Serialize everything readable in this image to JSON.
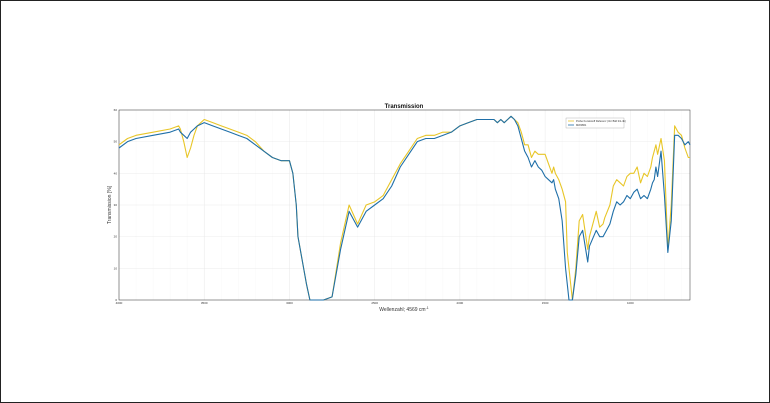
{
  "chart_data": {
    "type": "line",
    "title": "Transmission",
    "xlabel": "Wellenzahl; 4569 cm",
    "xlabel_superscript": "-1",
    "ylabel": "Transmission [%]",
    "xlim": [
      4000,
      650
    ],
    "ylim": [
      0,
      60
    ],
    "x_ticks": [
      4000,
      3500,
      3000,
      2500,
      2000,
      1500,
      1000
    ],
    "y_ticks": [
      0,
      10,
      20,
      30,
      40,
      50,
      60
    ],
    "grid": true,
    "legend_position": "top-right",
    "series": [
      {
        "name": "Probe Kunststoff Referenz (Vor Bild 3/1-4b)",
        "color": "#e8c628",
        "x": [
          4000,
          3950,
          3900,
          3800,
          3700,
          3650,
          3640,
          3620,
          3600,
          3580,
          3560,
          3540,
          3500,
          3450,
          3400,
          3350,
          3300,
          3250,
          3200,
          3150,
          3100,
          3050,
          3000,
          2980,
          2960,
          2950,
          2900,
          2880,
          2860,
          2850,
          2820,
          2800,
          2750,
          2700,
          2650,
          2600,
          2550,
          2500,
          2450,
          2400,
          2350,
          2300,
          2250,
          2200,
          2150,
          2100,
          2050,
          2000,
          1950,
          1900,
          1850,
          1800,
          1780,
          1760,
          1740,
          1720,
          1700,
          1680,
          1660,
          1640,
          1620,
          1600,
          1580,
          1560,
          1540,
          1520,
          1500,
          1480,
          1460,
          1450,
          1440,
          1420,
          1400,
          1380,
          1370,
          1360,
          1340,
          1320,
          1300,
          1280,
          1250,
          1240,
          1200,
          1180,
          1160,
          1150,
          1120,
          1100,
          1080,
          1060,
          1040,
          1020,
          1000,
          980,
          960,
          940,
          920,
          900,
          880,
          870,
          860,
          850,
          840,
          820,
          800,
          780,
          760,
          740,
          720,
          700,
          680,
          660,
          650
        ],
        "y": [
          49,
          51,
          52,
          53,
          54,
          55,
          54,
          50,
          45,
          48,
          52,
          55,
          57,
          56,
          55,
          54,
          53,
          52,
          50,
          47,
          45,
          44,
          44,
          40,
          30,
          20,
          5,
          0,
          0,
          0,
          0,
          0,
          1,
          18,
          30,
          24,
          30,
          31,
          33,
          38,
          43,
          47,
          51,
          52,
          52,
          53,
          53,
          55,
          56,
          57,
          57,
          57,
          56,
          57,
          56,
          57,
          58,
          57,
          56,
          53,
          49,
          49,
          45,
          47,
          46,
          46,
          46,
          43,
          40,
          42,
          40,
          38,
          35,
          31,
          15,
          10,
          0,
          10,
          25,
          27,
          16,
          20,
          28,
          23,
          24,
          26,
          30,
          36,
          38,
          37,
          36,
          39,
          40,
          40,
          42,
          37,
          40,
          39,
          42,
          45,
          47,
          49,
          46,
          51,
          44,
          16,
          30,
          55,
          53,
          52,
          48,
          45,
          45
        ],
        "visible_labels": {
          "title": "Transmission"
        }
      },
      {
        "name": "MW2861",
        "color": "#1f6fa8",
        "x": [
          4000,
          3950,
          3900,
          3800,
          3700,
          3650,
          3640,
          3620,
          3600,
          3580,
          3560,
          3540,
          3500,
          3450,
          3400,
          3350,
          3300,
          3250,
          3200,
          3150,
          3100,
          3050,
          3000,
          2980,
          2960,
          2950,
          2900,
          2880,
          2860,
          2850,
          2820,
          2800,
          2750,
          2700,
          2650,
          2600,
          2550,
          2500,
          2450,
          2400,
          2350,
          2300,
          2250,
          2200,
          2150,
          2100,
          2050,
          2000,
          1950,
          1900,
          1850,
          1800,
          1780,
          1760,
          1740,
          1720,
          1700,
          1680,
          1660,
          1640,
          1620,
          1600,
          1580,
          1560,
          1540,
          1520,
          1500,
          1480,
          1460,
          1450,
          1440,
          1420,
          1400,
          1380,
          1370,
          1360,
          1340,
          1320,
          1300,
          1280,
          1250,
          1240,
          1200,
          1180,
          1160,
          1150,
          1120,
          1100,
          1080,
          1060,
          1040,
          1020,
          1000,
          980,
          960,
          940,
          920,
          900,
          880,
          870,
          860,
          850,
          840,
          820,
          800,
          780,
          760,
          740,
          720,
          700,
          680,
          660,
          650
        ],
        "y": [
          48,
          50,
          51,
          52,
          53,
          54,
          53,
          52,
          51,
          53,
          54,
          55,
          56,
          55,
          54,
          53,
          52,
          51,
          49,
          47,
          45,
          44,
          44,
          40,
          30,
          20,
          5,
          0,
          0,
          0,
          0,
          0,
          1,
          16,
          28,
          23,
          28,
          30,
          32,
          36,
          42,
          46,
          50,
          51,
          51,
          52,
          53,
          55,
          56,
          57,
          57,
          57,
          56,
          57,
          56,
          57,
          58,
          57,
          55,
          51,
          47,
          45,
          42,
          44,
          42,
          41,
          39,
          38,
          37,
          38,
          35,
          32,
          25,
          10,
          5,
          0,
          0,
          8,
          20,
          22,
          12,
          17,
          22,
          20,
          20,
          21,
          24,
          28,
          31,
          30,
          31,
          33,
          32,
          34,
          35,
          32,
          33,
          32,
          35,
          37,
          38,
          42,
          39,
          47,
          33,
          15,
          25,
          52,
          52,
          51,
          49,
          50,
          49
        ],
        "visible_labels": {}
      }
    ]
  }
}
